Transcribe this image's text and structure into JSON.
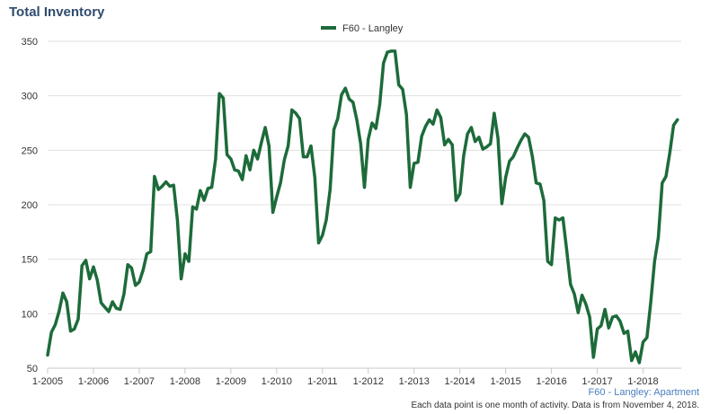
{
  "title": "Total Inventory",
  "source_label": "F60 - Langley: Apartment",
  "footnote": "Each data point is one month of activity. Data is from November 4, 2018.",
  "colors": {
    "series": "#1d6b3a",
    "title": "#2f4b6e",
    "grid": "#e0e0e0",
    "source": "#4a7fbf"
  },
  "chart_data": {
    "type": "line",
    "title": "Total Inventory",
    "legend_position": "top-center",
    "grid": true,
    "xlabel": "",
    "ylabel": "",
    "ylim": [
      50,
      350
    ],
    "y_ticks": [
      50,
      100,
      150,
      200,
      250,
      300,
      350
    ],
    "x_range": [
      "2005-01",
      "2018-11"
    ],
    "x_ticks": [
      "1-2005",
      "1-2006",
      "1-2007",
      "1-2008",
      "1-2009",
      "1-2010",
      "1-2011",
      "1-2012",
      "1-2013",
      "1-2014",
      "1-2015",
      "1-2016",
      "1-2017",
      "1-2018"
    ],
    "series": [
      {
        "name": "F60 - Langley",
        "x_start": "2005-01",
        "x_step": "1 month",
        "values": [
          62,
          83,
          90,
          102,
          119,
          111,
          84,
          86,
          95,
          144,
          149,
          132,
          143,
          131,
          110,
          106,
          102,
          111,
          105,
          104,
          118,
          145,
          142,
          126,
          129,
          140,
          155,
          157,
          226,
          214,
          217,
          221,
          217,
          218,
          186,
          132,
          155,
          148,
          198,
          196,
          213,
          204,
          215,
          216,
          242,
          302,
          298,
          246,
          242,
          232,
          231,
          223,
          245,
          232,
          250,
          242,
          257,
          271,
          254,
          193,
          207,
          220,
          241,
          254,
          287,
          284,
          279,
          244,
          244,
          254,
          225,
          165,
          172,
          186,
          214,
          269,
          279,
          301,
          307,
          297,
          294,
          278,
          256,
          216,
          260,
          275,
          270,
          292,
          330,
          340,
          341,
          341,
          310,
          306,
          283,
          216,
          238,
          239,
          263,
          272,
          278,
          274,
          287,
          280,
          255,
          260,
          255,
          204,
          210,
          245,
          265,
          271,
          258,
          262,
          251,
          253,
          256,
          284,
          261,
          201,
          225,
          240,
          244,
          252,
          259,
          265,
          262,
          244,
          220,
          219,
          204,
          148,
          145,
          188,
          186,
          188,
          158,
          127,
          118,
          101,
          117,
          109,
          97,
          60,
          86,
          89,
          104,
          87,
          97,
          98,
          93,
          82,
          84,
          57,
          65,
          55,
          74,
          78,
          110,
          148,
          170,
          220,
          226,
          248,
          273,
          278
        ]
      }
    ]
  }
}
